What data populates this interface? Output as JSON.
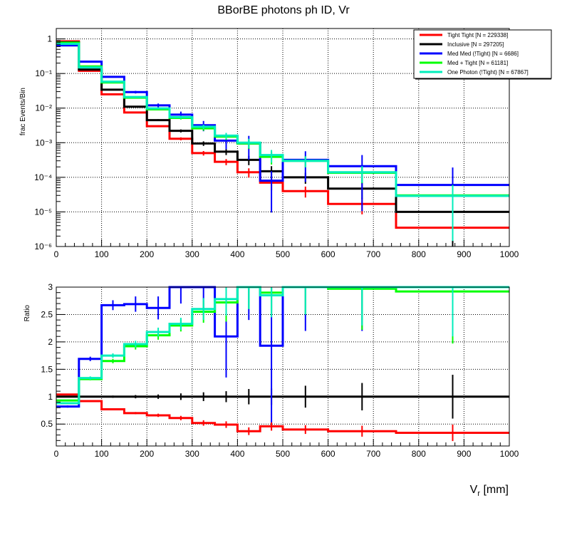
{
  "chart_data": {
    "type": "step",
    "title": "BBorBE photons ph ID, Vr",
    "bin_edges": [
      0,
      50,
      100,
      150,
      200,
      250,
      300,
      350,
      400,
      450,
      500,
      600,
      750,
      1000
    ],
    "bin_centers": [
      25,
      75,
      125,
      175,
      225,
      275,
      325,
      375,
      425,
      475,
      550,
      675,
      875
    ],
    "top": {
      "ylabel": "frac Events/Bin",
      "yscale": "log",
      "ylim": [
        1e-06,
        2
      ],
      "ytick_labels": [
        "10⁻⁶",
        "10⁻⁵",
        "10⁻⁴",
        "10⁻³",
        "10⁻²",
        "10⁻¹",
        "1"
      ],
      "series": [
        {
          "name": "Tight Tight [N = 229338]",
          "color": "#ff0000",
          "values": [
            0.85,
            0.12,
            0.025,
            0.0075,
            0.003,
            0.0013,
            0.0005,
            0.00028,
            0.00014,
            7e-05,
            4e-05,
            1.7e-05,
            3.5e-06
          ]
        },
        {
          "name": "Inclusive [N = 297205]",
          "color": "#000000",
          "values": [
            0.8,
            0.13,
            0.034,
            0.011,
            0.0045,
            0.0022,
            0.00095,
            0.00055,
            0.00032,
            0.00015,
            0.0001,
            4.7e-05,
            1e-05
          ]
        },
        {
          "name": "Med Med (!Tight) [N = 6686]",
          "color": "#0000ff",
          "values": [
            0.65,
            0.22,
            0.08,
            0.029,
            0.012,
            0.0065,
            0.0032,
            0.00115,
            0.00095,
            8e-05,
            0.00032,
            0.00021,
            6e-05
          ]
        },
        {
          "name": "Med + Tight [N = 61181]",
          "color": "#00ff00",
          "values": [
            0.78,
            0.16,
            0.055,
            0.02,
            0.0092,
            0.0052,
            0.0026,
            0.0015,
            0.00095,
            0.00039,
            0.0003,
            0.000135,
            3e-05
          ]
        },
        {
          "name": "One Photon (!Tight) [N = 67867]",
          "color": "#00eebb",
          "values": [
            0.72,
            0.15,
            0.058,
            0.021,
            0.0098,
            0.0055,
            0.0029,
            0.0016,
            0.001,
            0.00044,
            0.0003,
            0.00014,
            2.9e-05
          ]
        }
      ]
    },
    "bottom": {
      "ylabel": "Ratio",
      "ylim": [
        0.1,
        3
      ],
      "yticks": [
        0.5,
        1,
        1.5,
        2,
        2.5,
        3
      ],
      "ytick_labels": [
        "0.5",
        "1",
        "1.5",
        "2",
        "2.5",
        "3"
      ],
      "series": [
        {
          "name": "Tight Tight",
          "color": "#ff0000",
          "values": [
            1.04,
            0.92,
            0.77,
            0.7,
            0.66,
            0.61,
            0.52,
            0.49,
            0.37,
            0.46,
            0.4,
            0.37,
            0.34
          ],
          "errors": [
            0.01,
            0.01,
            0.01,
            0.02,
            0.03,
            0.04,
            0.05,
            0.06,
            0.07,
            0.08,
            0.08,
            0.1,
            0.15
          ]
        },
        {
          "name": "Inclusive",
          "color": "#000000",
          "values": [
            1,
            1,
            1,
            1,
            1,
            1,
            1,
            1,
            1,
            1,
            1,
            1,
            1
          ],
          "errors": [
            0,
            0,
            0.02,
            0.03,
            0.04,
            0.06,
            0.08,
            0.1,
            0.14,
            0.15,
            0.2,
            0.25,
            0.4
          ]
        },
        {
          "name": "Med Med (!Tight)",
          "color": "#0000ff",
          "values": [
            0.82,
            1.69,
            2.67,
            2.69,
            2.62,
            3.0,
            3.0,
            2.1,
            3.0,
            1.93,
            3.0,
            3.0,
            3.0
          ],
          "errors": [
            0.02,
            0.04,
            0.09,
            0.14,
            0.21,
            0.3,
            0.42,
            0.75,
            0.6,
            1.4,
            0.8,
            0.8,
            1.0
          ]
        },
        {
          "name": "Med + Tight",
          "color": "#00ff00",
          "values": [
            0.93,
            1.32,
            1.65,
            1.92,
            2.12,
            2.3,
            2.55,
            2.72,
            3.0,
            2.9,
            3.0,
            2.97,
            2.92
          ],
          "errors": [
            0.01,
            0.02,
            0.04,
            0.06,
            0.08,
            0.11,
            0.2,
            0.35,
            0.4,
            0.4,
            0.5,
            0.75,
            0.95
          ]
        },
        {
          "name": "One Photon (!Tight)",
          "color": "#00eebb",
          "values": [
            0.88,
            1.34,
            1.75,
            1.96,
            2.18,
            2.33,
            2.6,
            2.78,
            3.0,
            2.85,
            3.0,
            3.0,
            3.0
          ],
          "errors": [
            0.01,
            0.03,
            0.04,
            0.06,
            0.08,
            0.11,
            0.2,
            0.3,
            0.4,
            0.4,
            0.5,
            0.7,
            0.9
          ]
        }
      ]
    },
    "xlim": [
      0,
      1000
    ],
    "xticks": [
      0,
      100,
      200,
      300,
      400,
      500,
      600,
      700,
      800,
      900,
      1000
    ],
    "xtick_labels": [
      "0",
      "100",
      "200",
      "300",
      "400",
      "500",
      "600",
      "700",
      "800",
      "900",
      "1000"
    ],
    "xlabel_main": "V",
    "xlabel_sub": "r",
    "xlabel_unit": " [mm]",
    "legend_position": "top-right",
    "grid": true
  }
}
